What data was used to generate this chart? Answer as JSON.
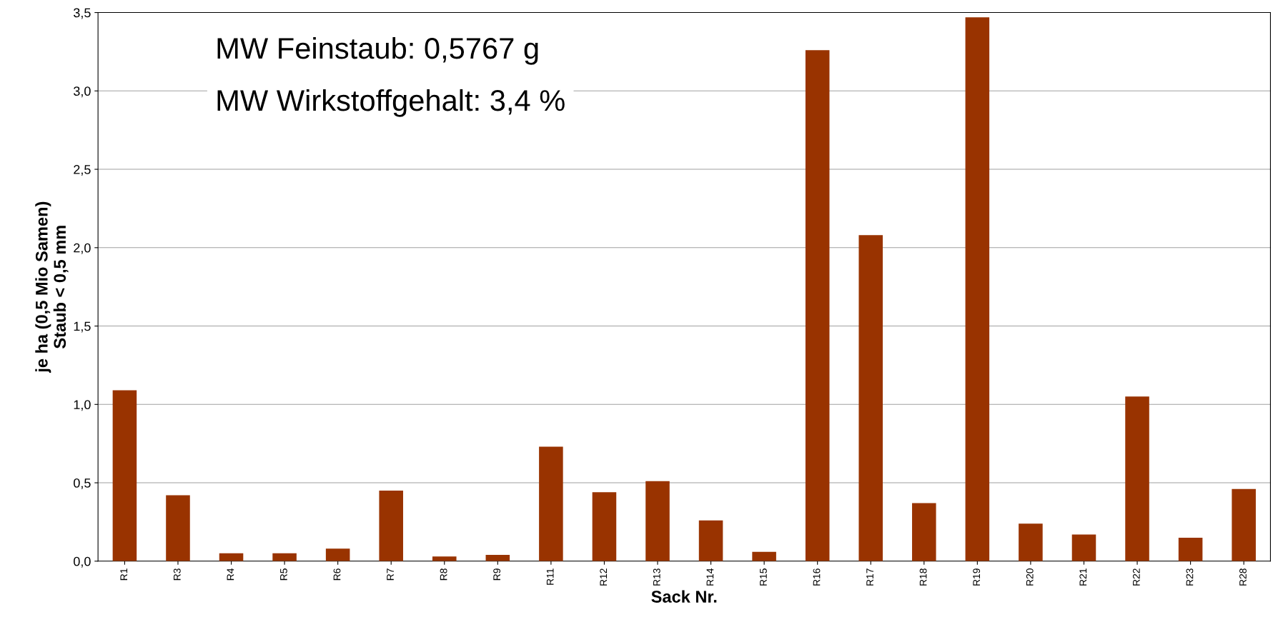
{
  "chart_data": {
    "type": "bar",
    "xlabel": "Sack Nr.",
    "ylabel": "je ha (0,5 Mio Samen)\nStaub < 0,5 mm",
    "categories": [
      "R1",
      "R3",
      "R4",
      "R5",
      "R6",
      "R7",
      "R8",
      "R9",
      "R11",
      "R12",
      "R13",
      "R14",
      "R15",
      "R16",
      "R17",
      "R18",
      "R19",
      "R20",
      "R21",
      "R22",
      "R23",
      "R28"
    ],
    "values": [
      1.09,
      0.42,
      0.05,
      0.05,
      0.08,
      0.45,
      0.03,
      0.04,
      0.73,
      0.44,
      0.51,
      0.26,
      0.06,
      3.26,
      2.08,
      0.37,
      3.47,
      0.24,
      0.17,
      1.05,
      0.15,
      0.46
    ],
    "color": "#993300",
    "ylim": [
      0,
      3.5
    ],
    "yticks": [
      {
        "value": 0,
        "label": "0,0"
      },
      {
        "value": 0.5,
        "label": "0,5"
      },
      {
        "value": 1,
        "label": "1,0"
      },
      {
        "value": 1.5,
        "label": "1,5"
      },
      {
        "value": 2,
        "label": "2,0"
      },
      {
        "value": 2.5,
        "label": "2,5"
      },
      {
        "value": 3,
        "label": "3,0"
      },
      {
        "value": 3.5,
        "label": "3,5"
      }
    ],
    "grid": "y",
    "annotations": [
      "MW Feinstaub: 0,5767 g",
      "MW Wirkstoffgehalt: 3,4 %"
    ]
  }
}
